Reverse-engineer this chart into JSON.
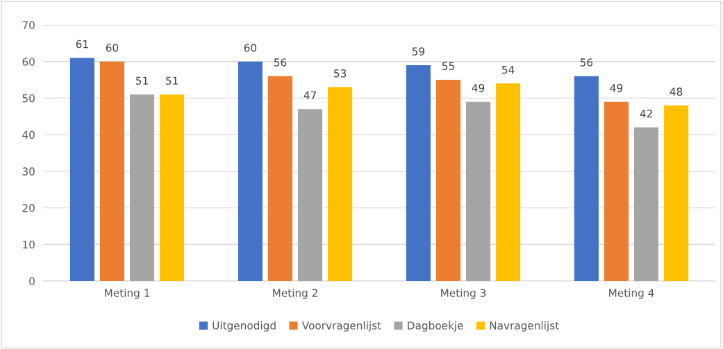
{
  "chart_data": {
    "type": "bar",
    "categories": [
      "Meting 1",
      "Meting 2",
      "Meting 3",
      "Meting 4"
    ],
    "series": [
      {
        "name": "Uitgenodigd",
        "color": "#4472c4",
        "values": [
          61,
          60,
          59,
          56
        ]
      },
      {
        "name": "Voorvragenlijst",
        "color": "#ed7d31",
        "values": [
          60,
          56,
          55,
          49
        ]
      },
      {
        "name": "Dagboekje",
        "color": "#a5a5a5",
        "values": [
          51,
          47,
          49,
          42
        ]
      },
      {
        "name": "Navragenlijst",
        "color": "#ffc000",
        "values": [
          51,
          53,
          54,
          48
        ]
      }
    ],
    "ylim": [
      0,
      70
    ],
    "yticks": [
      0,
      10,
      20,
      30,
      40,
      50,
      60,
      70
    ],
    "grid": "y",
    "legend": "bottom",
    "data_labels": true
  }
}
